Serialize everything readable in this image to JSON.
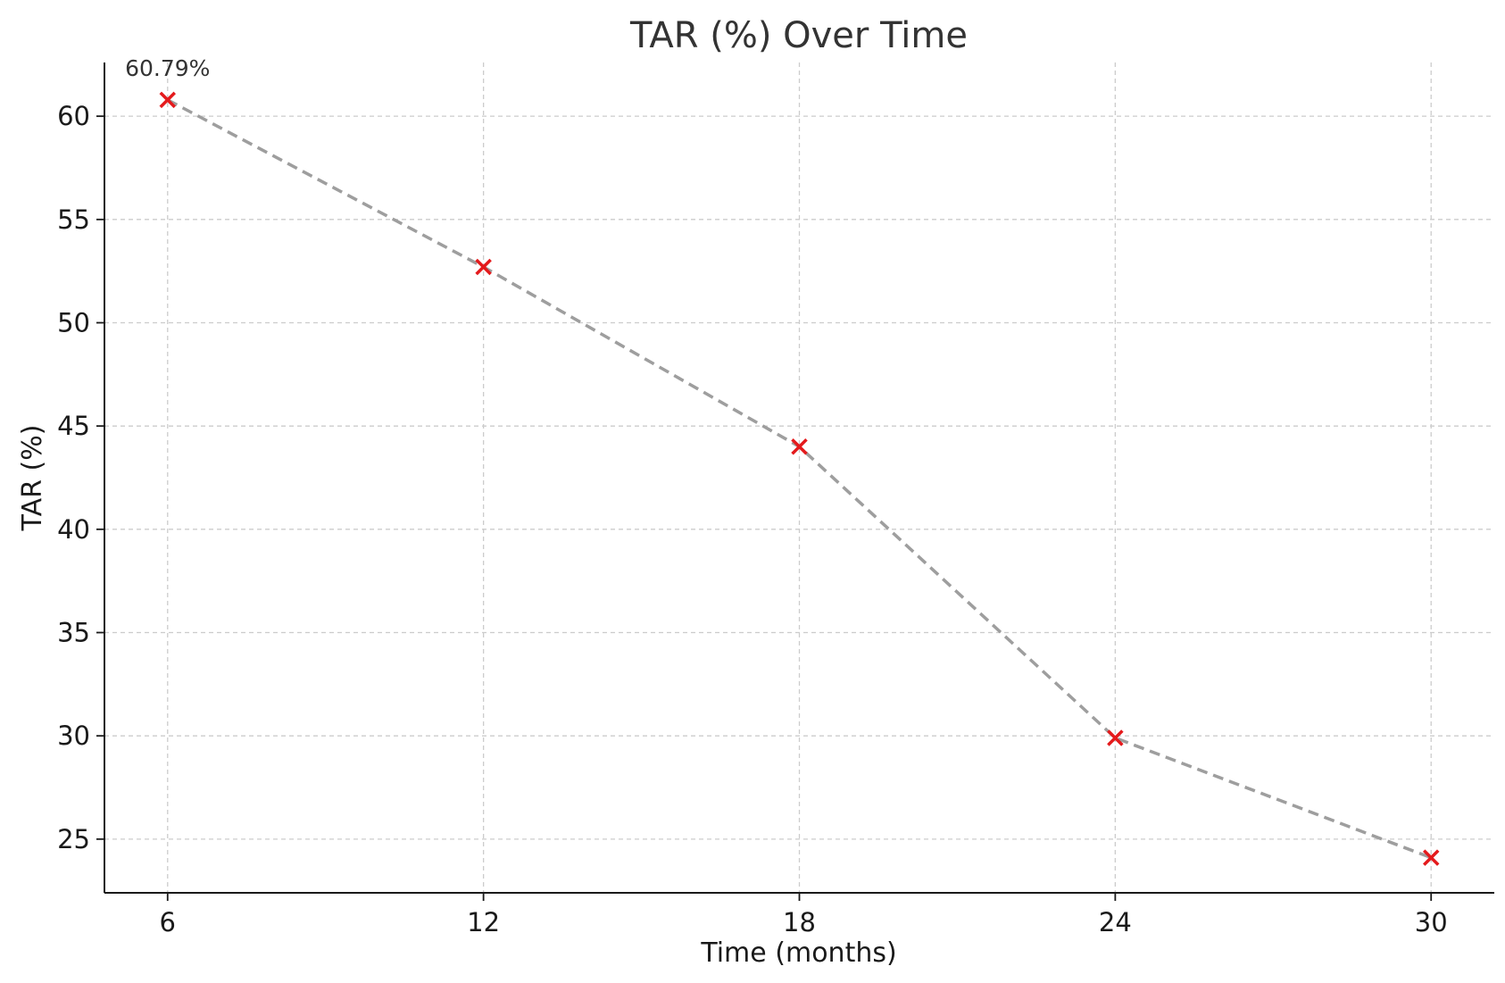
{
  "chart_data": {
    "type": "line",
    "title": "TAR (%) Over Time",
    "xlabel": "Time (months)",
    "ylabel": "TAR (%)",
    "x": [
      6,
      12,
      18,
      24,
      30
    ],
    "series": [
      {
        "values": [
          60.79,
          52.7,
          44.0,
          29.9,
          24.1
        ]
      }
    ],
    "xticks": [
      "6",
      "12",
      "18",
      "24",
      "30"
    ],
    "yticks": [
      "25",
      "30",
      "35",
      "40",
      "45",
      "50",
      "55",
      "60"
    ],
    "xlim": [
      4.8,
      31.2
    ],
    "ylim": [
      22.4,
      62.6
    ],
    "annotations": [
      {
        "x": 6,
        "y": 60.79,
        "text": "60.79%"
      }
    ],
    "grid": true,
    "line_color": "#9e9e9e",
    "line_style": "dashed",
    "marker": "x",
    "marker_color": "#e41a1c"
  }
}
